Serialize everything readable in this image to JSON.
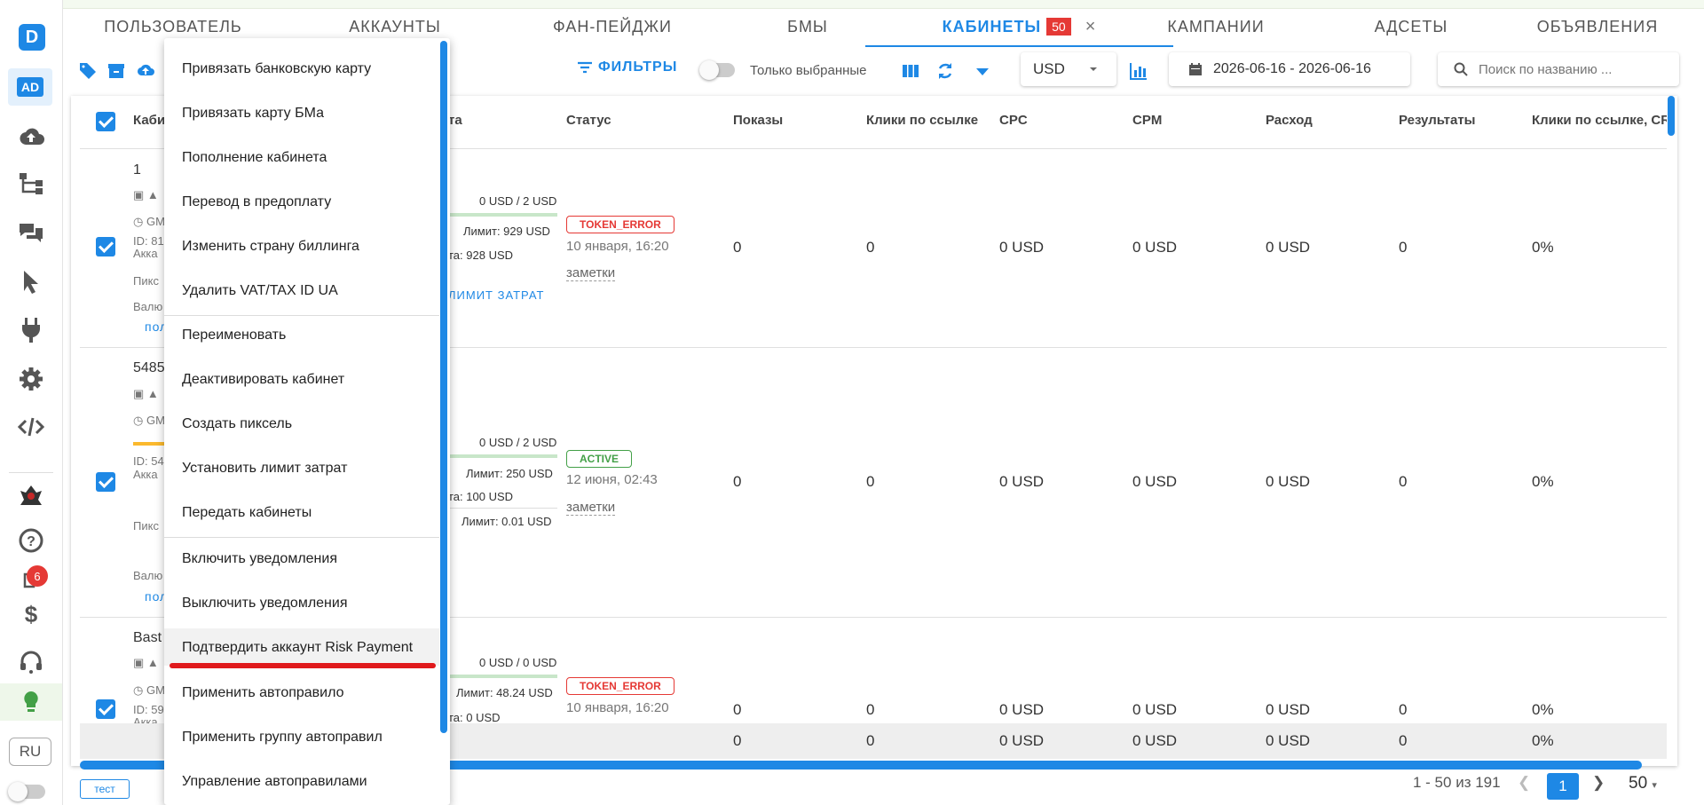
{
  "tabs": {
    "user": "Пользователь",
    "accounts": "Аккаунты",
    "fanpages": "Фан-пейджи",
    "bms": "БМы",
    "cabinets": "Кабинеты",
    "cabinets_count": "50",
    "close": "×",
    "campaigns": "Кампании",
    "adsets": "Адсеты",
    "ads": "Объявления"
  },
  "toolbar": {
    "filters": "ФИЛЬТРЫ",
    "only_selected": "Только выбранные",
    "currency": "USD",
    "date_range": "2026-06-16 - 2026-06-16",
    "search_placeholder": "Поиск по названию ..."
  },
  "sidebar": {
    "logo": "D",
    "ad": "AD",
    "notif_count": "6",
    "lang": "RU"
  },
  "table": {
    "headers": [
      "Каби",
      "та",
      "Статус",
      "Показы",
      "Клики по ссылке",
      "CPC",
      "CPM",
      "Расход",
      "Результаты",
      "Клики по ссылке, CR"
    ],
    "rows": [
      {
        "name": "1",
        "gm": "GM",
        "id": "ID: 81",
        "acc": "Акка",
        "pixel": "Пикс",
        "curr": "Валю",
        "more": "пол",
        "spend": "0 USD / 2 USD",
        "limit": "Лимит: 929 USD",
        "balance": "та: 928 USD",
        "limit_link": "ЛИМИТ ЗАТРАТ",
        "status": "TOKEN_ERROR",
        "date": "10 января, 16:20",
        "notes": "заметки",
        "impressions": "0",
        "clicks": "0",
        "cpc": "0 USD",
        "cpm": "0 USD",
        "spend_total": "0 USD",
        "results": "0",
        "cr": "0%"
      },
      {
        "name": "5485",
        "gm": "GM",
        "id": "ID: 54",
        "acc": "Акка",
        "pixel": "Пикс",
        "curr": "Валю",
        "more": "пол",
        "spend": "0 USD / 2 USD",
        "limit": "Лимит: 250 USD",
        "balance": "та: 100 USD",
        "extra": "Лимит: 0.01 USD",
        "status": "ACTIVE",
        "date": "12 июня, 02:43",
        "notes": "заметки",
        "impressions": "0",
        "clicks": "0",
        "cpc": "0 USD",
        "cpm": "0 USD",
        "spend_total": "0 USD",
        "results": "0",
        "cr": "0%"
      },
      {
        "name": "Bast",
        "gm": "GM",
        "id": "ID: 59",
        "acc": "Акка",
        "spend": "0 USD / 0 USD",
        "limit": "Лимит: 48.24 USD",
        "balance": "та: 0 USD",
        "status": "TOKEN_ERROR",
        "date": "10 января, 16:20",
        "impressions": "0",
        "clicks": "0",
        "cpc": "0 USD",
        "cpm": "0 USD",
        "spend_total": "0 USD",
        "results": "0",
        "cr": "0%"
      }
    ],
    "totals": {
      "impressions": "0",
      "clicks": "0",
      "cpc": "0 USD",
      "cpm": "0 USD",
      "spend_total": "0 USD",
      "results": "0",
      "cr": "0%"
    }
  },
  "footer": {
    "tag": "тест",
    "range": "1 - 50 из 191",
    "page": "1",
    "per_page": "50"
  },
  "menu": {
    "items": [
      "Привязать банковскую карту",
      "Привязать карту БМа",
      "Пополнение кабинета",
      "Перевод в предоплату",
      "Изменить страну биллинга",
      "Удалить VAT/TAX ID UA",
      "Переименовать",
      "Деактивировать кабинет",
      "Создать пиксель",
      "Установить лимит затрат",
      "Передать кабинеты",
      "Включить уведомления",
      "Выключить уведомления",
      "Подтвердить аккаунт Risk Payment",
      "Применить автоправило",
      "Применить группу автоправил",
      "Управление автоправилами"
    ]
  },
  "colors": {
    "accent": "#1e88e5",
    "error": "#e53935",
    "success": "#43a047",
    "highlight_line": "#e0191c"
  }
}
